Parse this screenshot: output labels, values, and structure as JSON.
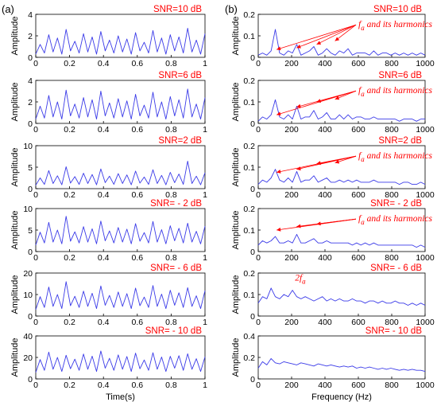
{
  "panel_labels": {
    "a": "(a)",
    "b": "(b)"
  },
  "colors": {
    "signal": "#3a3ae8",
    "annotation": "#ff0000",
    "axis": "#000000"
  },
  "chart_data": [
    {
      "type": "line",
      "panel": "a",
      "row": 0,
      "title": "SNR=10 dB",
      "xlabel": "",
      "ylabel": "Amplitude",
      "xlim": [
        0,
        1
      ],
      "ylim": [
        0,
        4
      ],
      "xticks": [
        "0",
        "0.2",
        "0.4",
        "0.6",
        "0.8",
        "1"
      ],
      "yticks": [
        "0",
        "2",
        "4"
      ],
      "series": [
        {
          "values": [
            0.3,
            1.2,
            0.4,
            2.1,
            0.5,
            1.8,
            0.3,
            2.6,
            0.6,
            1.5,
            0.4,
            2.2,
            0.5,
            1.9,
            0.3,
            2.4,
            0.6,
            1.6,
            0.4,
            2.0,
            0.5,
            1.7,
            0.3,
            2.3,
            0.6,
            1.4,
            0.4,
            2.5,
            0.5,
            1.8,
            0.3,
            2.1,
            0.6,
            1.9,
            0.4,
            2.7,
            0.5,
            1.6,
            0.3,
            2.2
          ]
        }
      ],
      "annotation": null
    },
    {
      "type": "line",
      "panel": "a",
      "row": 1,
      "title": "SNR=6 dB",
      "xlabel": "",
      "ylabel": "Amplitude",
      "xlim": [
        0,
        1
      ],
      "ylim": [
        0,
        4
      ],
      "xticks": [
        "0",
        "0.2",
        "0.4",
        "0.6",
        "0.8",
        "1"
      ],
      "yticks": [
        "0",
        "2",
        "4"
      ],
      "series": [
        {
          "values": [
            0.4,
            1.6,
            0.5,
            2.6,
            0.6,
            2.0,
            0.4,
            3.1,
            0.7,
            1.8,
            0.5,
            2.4,
            0.6,
            2.2,
            0.4,
            3.0,
            0.7,
            1.9,
            0.5,
            2.3,
            0.6,
            2.1,
            0.4,
            2.7,
            0.7,
            1.7,
            0.5,
            2.9,
            0.6,
            2.0,
            0.4,
            2.5,
            0.7,
            2.2,
            0.5,
            3.2,
            0.6,
            1.8,
            0.4,
            2.4
          ]
        }
      ],
      "annotation": null
    },
    {
      "type": "line",
      "panel": "a",
      "row": 2,
      "title": "SNR=2 dB",
      "xlabel": "",
      "ylabel": "Amplitude",
      "xlim": [
        0,
        1
      ],
      "ylim": [
        0,
        10
      ],
      "xticks": [
        "0",
        "0.2",
        "0.4",
        "0.6",
        "0.8",
        "1"
      ],
      "yticks": [
        "0",
        "5",
        "10"
      ],
      "series": [
        {
          "values": [
            0.8,
            2.5,
            1.0,
            4.2,
            1.2,
            3.0,
            0.9,
            5.1,
            1.3,
            2.8,
            1.0,
            3.6,
            1.2,
            3.3,
            0.9,
            4.6,
            1.4,
            2.9,
            1.0,
            3.5,
            1.2,
            3.2,
            0.9,
            4.1,
            1.3,
            2.7,
            1.0,
            4.4,
            1.2,
            3.1,
            0.9,
            3.8,
            1.4,
            3.4,
            1.0,
            6.4,
            1.2,
            2.9,
            0.9,
            3.7
          ]
        }
      ],
      "annotation": null
    },
    {
      "type": "line",
      "panel": "a",
      "row": 3,
      "title": "SNR= - 2 dB",
      "xlabel": "",
      "ylabel": "Amplitude",
      "xlim": [
        0,
        1
      ],
      "ylim": [
        0,
        10
      ],
      "xticks": [
        "0",
        "0.2",
        "0.4",
        "0.6",
        "0.8",
        "1"
      ],
      "yticks": [
        "0",
        "5",
        "10"
      ],
      "series": [
        {
          "values": [
            1.5,
            4.5,
            2.0,
            6.8,
            2.2,
            5.0,
            1.8,
            8.2,
            2.4,
            4.6,
            2.0,
            5.8,
            2.2,
            5.3,
            1.8,
            7.1,
            2.5,
            4.8,
            2.0,
            5.6,
            2.2,
            5.2,
            1.8,
            6.5,
            2.4,
            4.4,
            2.0,
            7.0,
            2.2,
            5.1,
            1.8,
            6.0,
            2.5,
            5.4,
            2.0,
            6.6,
            2.2,
            4.7,
            1.8,
            5.9
          ]
        }
      ],
      "annotation": null
    },
    {
      "type": "line",
      "panel": "a",
      "row": 4,
      "title": "SNR= - 6 dB",
      "xlabel": "",
      "ylabel": "Amplitude",
      "xlim": [
        0,
        1
      ],
      "ylim": [
        0,
        20
      ],
      "xticks": [
        "0",
        "0.2",
        "0.4",
        "0.6",
        "0.8",
        "1"
      ],
      "yticks": [
        "0",
        "10",
        "20"
      ],
      "series": [
        {
          "values": [
            3.0,
            9.0,
            4.0,
            13.5,
            4.5,
            10.0,
            3.5,
            16.0,
            4.8,
            9.2,
            4.0,
            11.6,
            4.5,
            10.6,
            3.5,
            14.0,
            5.0,
            9.6,
            4.0,
            11.2,
            4.5,
            10.4,
            3.5,
            13.0,
            4.8,
            8.8,
            4.0,
            14.2,
            4.5,
            10.2,
            3.5,
            12.0,
            5.0,
            10.8,
            4.0,
            13.2,
            4.5,
            9.4,
            3.5,
            11.8
          ]
        }
      ],
      "annotation": null
    },
    {
      "type": "line",
      "panel": "a",
      "row": 5,
      "title": "SNR= - 10 dB",
      "xlabel": "Time(s)",
      "ylabel": "Amplitude",
      "xlim": [
        0,
        1
      ],
      "ylim": [
        0,
        40
      ],
      "xticks": [
        "0",
        "0.2",
        "0.4",
        "0.6",
        "0.8",
        "1"
      ],
      "yticks": [
        "0",
        "20",
        "40"
      ],
      "series": [
        {
          "values": [
            6.0,
            18.0,
            8.0,
            25.0,
            9.0,
            20.0,
            7.0,
            22.0,
            9.5,
            18.4,
            8.0,
            23.2,
            9.0,
            21.2,
            7.0,
            26.0,
            10.0,
            19.2,
            8.0,
            22.4,
            9.0,
            20.8,
            7.0,
            24.0,
            9.5,
            17.6,
            8.0,
            24.4,
            9.0,
            20.4,
            7.0,
            21.0,
            10.0,
            21.6,
            8.0,
            23.4,
            9.0,
            18.8,
            7.0,
            20.6
          ]
        }
      ],
      "annotation": null
    },
    {
      "type": "line",
      "panel": "b",
      "row": 0,
      "title": "SNR=10 dB",
      "xlabel": "",
      "ylabel": "Amplitude",
      "xlim": [
        0,
        1000
      ],
      "ylim": [
        0,
        0.2
      ],
      "xticks": [
        "0",
        "200",
        "400",
        "600",
        "800",
        "1000"
      ],
      "yticks": [
        "0",
        "0.1",
        "0.2"
      ],
      "series": [
        {
          "values": [
            0.01,
            0.02,
            0.01,
            0.03,
            0.13,
            0.02,
            0.01,
            0.03,
            0.02,
            0.06,
            0.01,
            0.02,
            0.03,
            0.05,
            0.01,
            0.02,
            0.04,
            0.02,
            0.01,
            0.03,
            0.02,
            0.04,
            0.01,
            0.02,
            0.02,
            0.02,
            0.01,
            0.03,
            0.01,
            0.02,
            0.02,
            0.01,
            0.02,
            0.01,
            0.02,
            0.01,
            0.02,
            0.01,
            0.02,
            0.01
          ]
        }
      ],
      "annotation": {
        "prefix": "f",
        "sub": "a",
        "suffix": " and its harmonics"
      }
    },
    {
      "type": "line",
      "panel": "b",
      "row": 1,
      "title": "SNR=6 dB",
      "xlabel": "",
      "ylabel": "Amplitude",
      "xlim": [
        0,
        1000
      ],
      "ylim": [
        0,
        0.2
      ],
      "xticks": [
        "0",
        "200",
        "400",
        "600",
        "800",
        "1000"
      ],
      "yticks": [
        "0",
        "0.1",
        "0.2"
      ],
      "series": [
        {
          "values": [
            0.01,
            0.03,
            0.02,
            0.04,
            0.11,
            0.03,
            0.02,
            0.04,
            0.02,
            0.08,
            0.02,
            0.03,
            0.03,
            0.06,
            0.02,
            0.03,
            0.05,
            0.02,
            0.02,
            0.04,
            0.02,
            0.04,
            0.02,
            0.03,
            0.03,
            0.02,
            0.02,
            0.03,
            0.02,
            0.02,
            0.02,
            0.02,
            0.02,
            0.01,
            0.02,
            0.02,
            0.02,
            0.01,
            0.02,
            0.02
          ]
        }
      ],
      "annotation": {
        "prefix": "f",
        "sub": "a",
        "suffix": " and its harmonics"
      }
    },
    {
      "type": "line",
      "panel": "b",
      "row": 2,
      "title": "SNR=2 dB",
      "xlabel": "",
      "ylabel": "Amplitude",
      "xlim": [
        0,
        1000
      ],
      "ylim": [
        0,
        0.2
      ],
      "xticks": [
        "0",
        "200",
        "400",
        "600",
        "800",
        "1000"
      ],
      "yticks": [
        "0",
        "0.1",
        "0.2"
      ],
      "series": [
        {
          "values": [
            0.02,
            0.04,
            0.03,
            0.05,
            0.09,
            0.04,
            0.03,
            0.05,
            0.03,
            0.08,
            0.03,
            0.04,
            0.04,
            0.06,
            0.03,
            0.04,
            0.05,
            0.03,
            0.03,
            0.04,
            0.03,
            0.04,
            0.03,
            0.04,
            0.03,
            0.03,
            0.03,
            0.04,
            0.03,
            0.03,
            0.03,
            0.03,
            0.03,
            0.02,
            0.03,
            0.03,
            0.02,
            0.02,
            0.03,
            0.02
          ]
        }
      ],
      "annotation": {
        "prefix": "f",
        "sub": "a",
        "suffix": " and its harmonics"
      }
    },
    {
      "type": "line",
      "panel": "b",
      "row": 3,
      "title": "SNR= - 2 dB",
      "xlabel": "",
      "ylabel": "Amplitude",
      "xlim": [
        0,
        1000
      ],
      "ylim": [
        0,
        0.2
      ],
      "xticks": [
        "0",
        "200",
        "400",
        "600",
        "800",
        "1000"
      ],
      "yticks": [
        "0",
        "0.1",
        "0.2"
      ],
      "series": [
        {
          "values": [
            0.03,
            0.05,
            0.04,
            0.05,
            0.07,
            0.04,
            0.04,
            0.05,
            0.04,
            0.08,
            0.04,
            0.04,
            0.05,
            0.06,
            0.04,
            0.04,
            0.05,
            0.04,
            0.04,
            0.04,
            0.04,
            0.04,
            0.03,
            0.04,
            0.03,
            0.04,
            0.03,
            0.04,
            0.03,
            0.03,
            0.03,
            0.03,
            0.03,
            0.03,
            0.03,
            0.03,
            0.03,
            0.02,
            0.03,
            0.02
          ]
        }
      ],
      "annotation": {
        "prefix": "f",
        "sub": "a",
        "suffix": " and its harmonics"
      }
    },
    {
      "type": "line",
      "panel": "b",
      "row": 4,
      "title": "SNR= - 6 dB",
      "xlabel": "",
      "ylabel": "Amplitude",
      "xlim": [
        0,
        1000
      ],
      "ylim": [
        0,
        0.2
      ],
      "xticks": [
        "0",
        "200",
        "400",
        "600",
        "800",
        "1000"
      ],
      "yticks": [
        "0",
        "0.1",
        "0.2"
      ],
      "series": [
        {
          "values": [
            0.06,
            0.09,
            0.08,
            0.13,
            0.09,
            0.08,
            0.1,
            0.09,
            0.12,
            0.09,
            0.08,
            0.09,
            0.08,
            0.07,
            0.08,
            0.09,
            0.07,
            0.08,
            0.07,
            0.08,
            0.07,
            0.07,
            0.08,
            0.07,
            0.07,
            0.06,
            0.07,
            0.07,
            0.06,
            0.07,
            0.06,
            0.06,
            0.07,
            0.06,
            0.06,
            0.05,
            0.06,
            0.05,
            0.06,
            0.05
          ]
        }
      ],
      "annotation": {
        "prefix": "2f",
        "sub": "a",
        "suffix": ""
      }
    },
    {
      "type": "line",
      "panel": "b",
      "row": 5,
      "title": "SNR= - 10 dB",
      "xlabel": "Frequency (Hz)",
      "ylabel": "Amplitude",
      "xlim": [
        0,
        1000
      ],
      "ylim": [
        0,
        0.4
      ],
      "xticks": [
        "0",
        "200",
        "400",
        "600",
        "800",
        "1000"
      ],
      "yticks": [
        "0",
        "0.2",
        "0.4"
      ],
      "series": [
        {
          "values": [
            0.1,
            0.16,
            0.13,
            0.19,
            0.15,
            0.14,
            0.16,
            0.15,
            0.14,
            0.13,
            0.15,
            0.14,
            0.13,
            0.12,
            0.14,
            0.13,
            0.12,
            0.13,
            0.12,
            0.11,
            0.12,
            0.11,
            0.12,
            0.1,
            0.11,
            0.1,
            0.11,
            0.1,
            0.09,
            0.1,
            0.09,
            0.1,
            0.09,
            0.08,
            0.09,
            0.08,
            0.09,
            0.08,
            0.08,
            0.07
          ]
        }
      ],
      "annotation": null
    }
  ]
}
